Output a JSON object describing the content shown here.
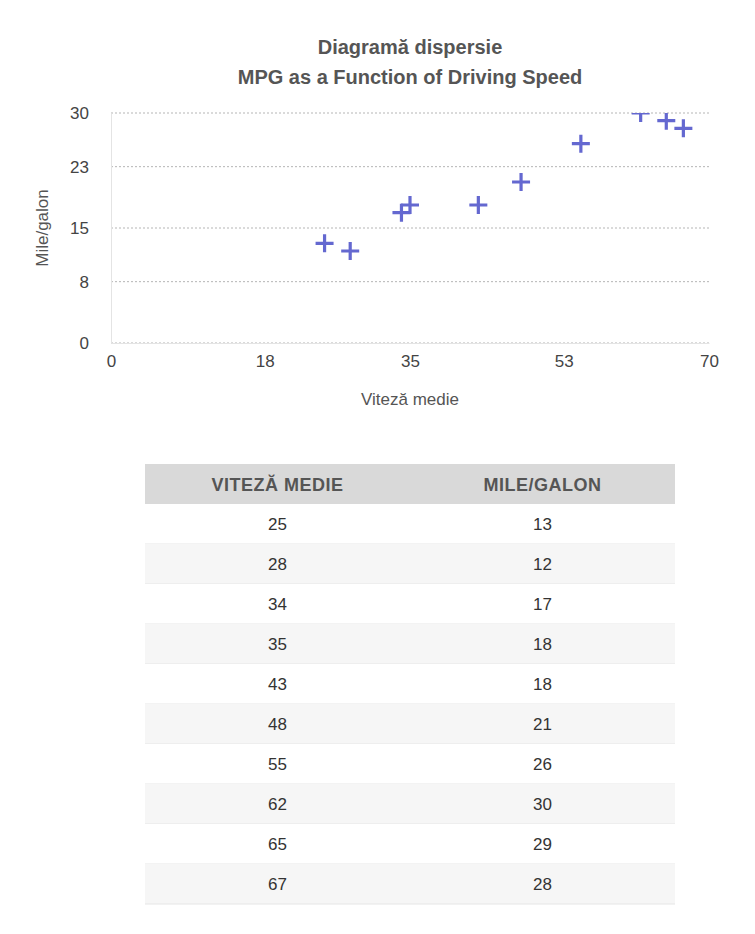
{
  "chart_data": {
    "type": "scatter",
    "title": "Diagramă dispersie",
    "subtitle": "MPG as a Function of Driving Speed",
    "x_label": "Viteză medie",
    "y_label": "Mile/galon",
    "x": [
      25,
      28,
      34,
      35,
      43,
      48,
      55,
      62,
      65,
      67
    ],
    "values": [
      13,
      12,
      17,
      18,
      18,
      21,
      26,
      30,
      29,
      28
    ],
    "color": "#6468d0",
    "marker": "plus",
    "xlim": [
      0,
      70
    ],
    "xticks": [
      0,
      18,
      35,
      53,
      70
    ],
    "ylim": [
      0,
      30
    ],
    "yticks": [
      0,
      8,
      15,
      23,
      30
    ],
    "grid": true
  },
  "table": {
    "header": [
      "VITEZĂ MEDIE",
      "MILE/GALON"
    ],
    "rows": [
      [
        25,
        13
      ],
      [
        28,
        12
      ],
      [
        34,
        17
      ],
      [
        35,
        18
      ],
      [
        43,
        18
      ],
      [
        48,
        21
      ],
      [
        55,
        26
      ],
      [
        62,
        30
      ],
      [
        65,
        29
      ],
      [
        67,
        28
      ]
    ]
  }
}
